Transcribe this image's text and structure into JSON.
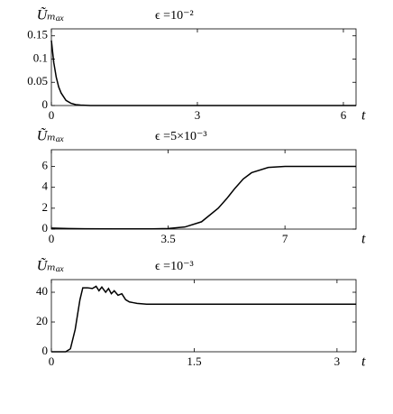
{
  "chart_data": [
    {
      "type": "line",
      "title": "ϵ =10⁻²",
      "y_label": "Ũₘₐₓ",
      "x_label": "t",
      "color": "#000000",
      "x": [
        0,
        0.05,
        0.1,
        0.15,
        0.2,
        0.3,
        0.4,
        0.5,
        0.6,
        0.8,
        1,
        2,
        3,
        4,
        5,
        6,
        6.26
      ],
      "series": [
        {
          "values": [
            0.14,
            0.092,
            0.061,
            0.04,
            0.027,
            0.011,
            0.005,
            0.002,
            0.001,
            0,
            0,
            0,
            0,
            0,
            0,
            0,
            0
          ]
        }
      ],
      "xlim": [
        0,
        6.26
      ],
      "ylim": [
        0,
        0.165
      ],
      "xticks": [
        0,
        3,
        6
      ],
      "yticks": [
        0,
        0.05,
        0.1,
        0.15
      ]
    },
    {
      "type": "line",
      "title": "ϵ =5×10⁻³",
      "y_label": "Ũₘₐₓ",
      "x_label": "t",
      "color": "#000000",
      "x": [
        0,
        0.5,
        1,
        2,
        3,
        3.5,
        4,
        4.5,
        5,
        5.25,
        5.5,
        5.75,
        6,
        6.5,
        7,
        8,
        9.13
      ],
      "series": [
        {
          "values": [
            0.1,
            0.05,
            0.03,
            0.02,
            0.02,
            0.05,
            0.2,
            0.7,
            2.0,
            2.9,
            3.9,
            4.8,
            5.4,
            5.9,
            6,
            6,
            6
          ]
        }
      ],
      "xlim": [
        0,
        9.13
      ],
      "ylim": [
        0,
        7.6
      ],
      "xticks": [
        0,
        3.5,
        7
      ],
      "yticks": [
        0,
        2,
        4,
        6
      ]
    },
    {
      "type": "line",
      "title": "ϵ =10⁻³",
      "y_label": "Ũₘₐₓ",
      "x_label": "t",
      "color": "#000000",
      "x": [
        0,
        0.15,
        0.2,
        0.25,
        0.3,
        0.33,
        0.38,
        0.43,
        0.47,
        0.5,
        0.53,
        0.57,
        0.6,
        0.63,
        0.66,
        0.7,
        0.74,
        0.78,
        0.82,
        0.86,
        0.9,
        1,
        1.5,
        2,
        3,
        3.2
      ],
      "series": [
        {
          "values": [
            0,
            0,
            2,
            15,
            35,
            43,
            43,
            42.5,
            44,
            41,
            43.5,
            40,
            42.5,
            39,
            41,
            38,
            39,
            35,
            33.5,
            33,
            32.5,
            32,
            32,
            32,
            32,
            32
          ]
        }
      ],
      "xlim": [
        0,
        3.2
      ],
      "ylim": [
        0,
        48.5
      ],
      "xticks": [
        0,
        1.5,
        3
      ],
      "yticks": [
        0,
        20,
        40
      ]
    }
  ]
}
